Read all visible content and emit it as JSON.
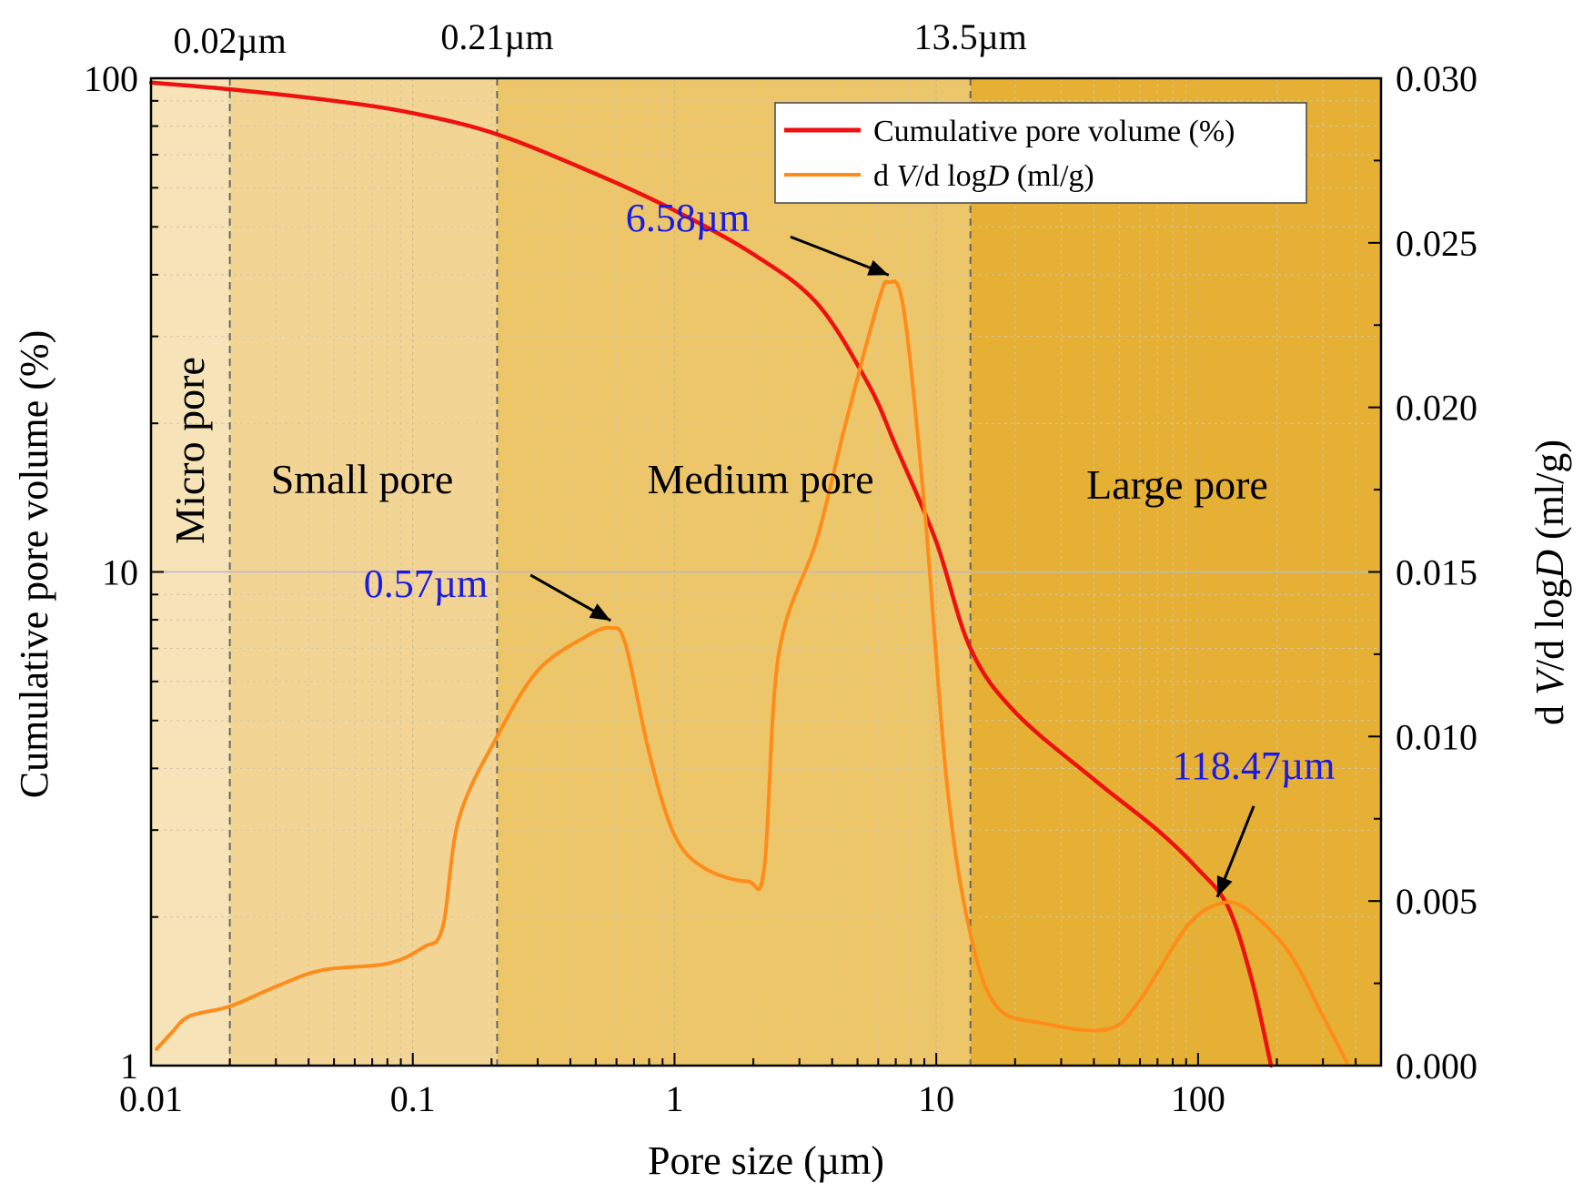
{
  "chart_data": {
    "type": "line",
    "title": "",
    "xlabel": "Pore size (µm)",
    "ylabel_left": "Cumulative pore volume (%)",
    "ylabel_right": {
      "prefix": "d ",
      "v": "V",
      "mid": "/d log",
      "d": "D",
      "suffix": " (ml/g)"
    },
    "x_scale": "log",
    "xlim": [
      0.01,
      500
    ],
    "ylim_left": [
      1,
      100
    ],
    "y_scale_left": "log",
    "ylim_right": [
      0,
      0.03
    ],
    "x_ticks": [
      {
        "value": 0.01,
        "label": "0.01"
      },
      {
        "value": 0.1,
        "label": "0.1"
      },
      {
        "value": 1,
        "label": "1"
      },
      {
        "value": 10,
        "label": "10"
      },
      {
        "value": 100,
        "label": "100"
      }
    ],
    "y_ticks_left": [
      {
        "value": 1,
        "label": "1"
      },
      {
        "value": 10,
        "label": "10"
      },
      {
        "value": 100,
        "label": "100"
      }
    ],
    "y_ticks_right": [
      {
        "value": 0,
        "label": "0.000"
      },
      {
        "value": 0.005,
        "label": "0.005"
      },
      {
        "value": 0.01,
        "label": "0.010"
      },
      {
        "value": 0.015,
        "label": "0.015"
      },
      {
        "value": 0.02,
        "label": "0.020"
      },
      {
        "value": 0.025,
        "label": "0.025"
      },
      {
        "value": 0.03,
        "label": "0.030"
      }
    ],
    "regions": [
      {
        "name": "Micro pore",
        "from": 0.01,
        "to": 0.02,
        "color": "#f6e3b8"
      },
      {
        "name": "Small pore",
        "from": 0.02,
        "to": 0.21,
        "color": "#f2d494"
      },
      {
        "name": "Medium pore",
        "from": 0.21,
        "to": 13.5,
        "color": "#edc66a"
      },
      {
        "name": "Large pore",
        "from": 13.5,
        "to": 500,
        "color": "#e5b033"
      }
    ],
    "boundaries": [
      {
        "value": 0.02,
        "label": "0.02µm"
      },
      {
        "value": 0.21,
        "label": "0.21µm"
      },
      {
        "value": 13.5,
        "label": "13.5µm"
      }
    ],
    "series": [
      {
        "name": "Cumulative pore volume (%)",
        "axis": "left",
        "color": "#ee1111",
        "points": [
          [
            0.01,
            98
          ],
          [
            0.02,
            95
          ],
          [
            0.05,
            90
          ],
          [
            0.1,
            85
          ],
          [
            0.21,
            77
          ],
          [
            0.5,
            64
          ],
          [
            1,
            54
          ],
          [
            2,
            44
          ],
          [
            3.5,
            35
          ],
          [
            5.5,
            24
          ],
          [
            7,
            18
          ],
          [
            10,
            11.5
          ],
          [
            13.5,
            7
          ],
          [
            20,
            5.2
          ],
          [
            40,
            3.8
          ],
          [
            70,
            3.0
          ],
          [
            100,
            2.5
          ],
          [
            130,
            2.1
          ],
          [
            160,
            1.5
          ],
          [
            190,
            1.0
          ]
        ]
      },
      {
        "name": "d V/d logD (ml/g)",
        "axis": "right",
        "color": "#ff8c1a",
        "points": [
          [
            0.0105,
            0.0005
          ],
          [
            0.012,
            0.001
          ],
          [
            0.014,
            0.0015
          ],
          [
            0.02,
            0.0018
          ],
          [
            0.03,
            0.0024
          ],
          [
            0.045,
            0.0029
          ],
          [
            0.08,
            0.0031
          ],
          [
            0.11,
            0.0036
          ],
          [
            0.13,
            0.0042
          ],
          [
            0.15,
            0.0075
          ],
          [
            0.21,
            0.01
          ],
          [
            0.3,
            0.012
          ],
          [
            0.45,
            0.013
          ],
          [
            0.57,
            0.0133
          ],
          [
            0.65,
            0.0128
          ],
          [
            0.8,
            0.0095
          ],
          [
            1.0,
            0.007
          ],
          [
            1.3,
            0.006
          ],
          [
            1.9,
            0.0056
          ],
          [
            2.2,
            0.006
          ],
          [
            2.5,
            0.0125
          ],
          [
            3.5,
            0.016
          ],
          [
            4.5,
            0.0195
          ],
          [
            6.0,
            0.0232
          ],
          [
            6.58,
            0.0238
          ],
          [
            7.5,
            0.023
          ],
          [
            9,
            0.017
          ],
          [
            11,
            0.0085
          ],
          [
            13.5,
            0.004
          ],
          [
            17,
            0.0018
          ],
          [
            25,
            0.0013
          ],
          [
            45,
            0.0011
          ],
          [
            60,
            0.002
          ],
          [
            90,
            0.0042
          ],
          [
            118.47,
            0.0049
          ],
          [
            150,
            0.0048
          ],
          [
            220,
            0.0035
          ],
          [
            300,
            0.0015
          ],
          [
            370,
            0.0001
          ]
        ]
      }
    ],
    "peaks": [
      {
        "label": "0.57µm",
        "x": 0.57,
        "y": 0.0133
      },
      {
        "label": "6.58µm",
        "x": 6.58,
        "y": 0.0238
      },
      {
        "label": "118.47µm",
        "x": 118.47,
        "y": 0.0049
      }
    ],
    "legend": {
      "position": "top-right",
      "entries": [
        {
          "label": "Cumulative pore volume (%)",
          "color": "#ee1111"
        },
        {
          "prefix": "d ",
          "v": "V",
          "mid": "/d log",
          "d": "D",
          "suffix": " (ml/g)",
          "color": "#ff8c1a"
        }
      ]
    }
  }
}
